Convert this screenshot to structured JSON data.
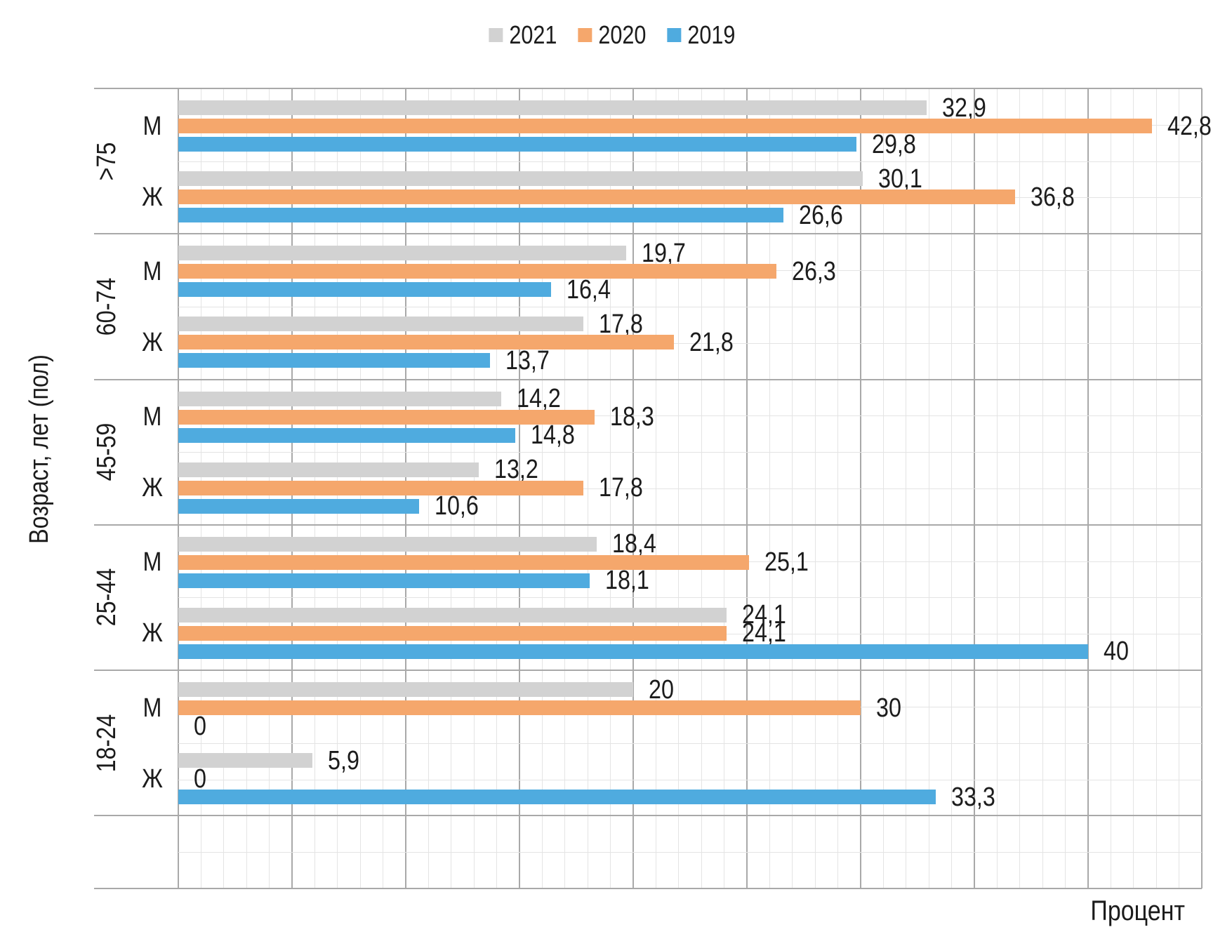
{
  "chart_data": {
    "type": "bar",
    "orientation": "horizontal",
    "title": "",
    "xlabel": "Процент",
    "ylabel": "Возраст, лет (пол)",
    "xlim": [
      0,
      45
    ],
    "x_minor_step": 1,
    "x_major_step": 5,
    "grid": true,
    "legend_position": "top-center",
    "decimal_separator": ",",
    "series": [
      {
        "name": "2021",
        "color": "#d2d2d2"
      },
      {
        "name": "2020",
        "color": "#f5a76c"
      },
      {
        "name": "2019",
        "color": "#4fabdf"
      }
    ],
    "groups": [
      {
        "age": ">75",
        "rows": [
          {
            "sex": "М",
            "values": [
              32.9,
              42.8,
              29.8
            ],
            "labels": [
              "32,9",
              "42,8",
              "29,8"
            ]
          },
          {
            "sex": "Ж",
            "values": [
              30.1,
              36.8,
              26.6
            ],
            "labels": [
              "30,1",
              "36,8",
              "26,6"
            ]
          }
        ]
      },
      {
        "age": "60-74",
        "rows": [
          {
            "sex": "М",
            "values": [
              19.7,
              26.3,
              16.4
            ],
            "labels": [
              "19,7",
              "26,3",
              "16,4"
            ]
          },
          {
            "sex": "Ж",
            "values": [
              17.8,
              21.8,
              13.7
            ],
            "labels": [
              "17,8",
              "21,8",
              "13,7"
            ]
          }
        ]
      },
      {
        "age": "45-59",
        "rows": [
          {
            "sex": "М",
            "values": [
              14.2,
              18.3,
              14.8
            ],
            "labels": [
              "14,2",
              "18,3",
              "14,8"
            ]
          },
          {
            "sex": "Ж",
            "values": [
              13.2,
              17.8,
              10.6
            ],
            "labels": [
              "13,2",
              "17,8",
              "10,6"
            ]
          }
        ]
      },
      {
        "age": "25-44",
        "rows": [
          {
            "sex": "М",
            "values": [
              18.4,
              25.1,
              18.1
            ],
            "labels": [
              "18,4",
              "25,1",
              "18,1"
            ]
          },
          {
            "sex": "Ж",
            "values": [
              24.1,
              24.1,
              40
            ],
            "labels": [
              "24,1",
              "24,1",
              "40"
            ]
          }
        ]
      },
      {
        "age": "18-24",
        "rows": [
          {
            "sex": "М",
            "values": [
              20,
              30,
              0
            ],
            "labels": [
              "20",
              "30",
              "0"
            ]
          },
          {
            "sex": "Ж",
            "values": [
              5.9,
              0,
              33.3
            ],
            "labels": [
              "5,9",
              "0",
              "33,3"
            ]
          }
        ]
      }
    ],
    "text_color": "#1c1c1c",
    "grid_minor_color": "#e4e4e4",
    "grid_major_color": "#a9a9a9",
    "background_color": "#ffffff"
  }
}
